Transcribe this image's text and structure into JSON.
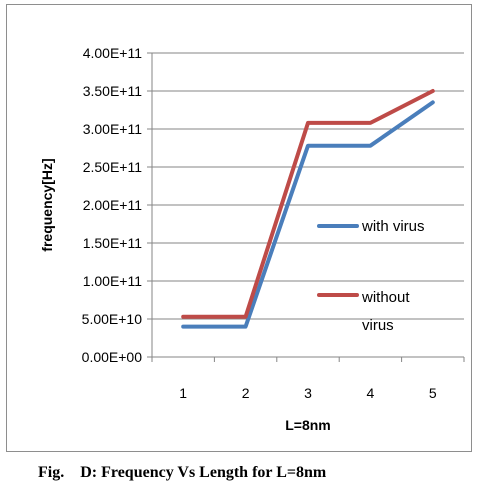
{
  "caption": "Fig.    D: Frequency Vs Length for L=8nm",
  "chart_data": {
    "type": "line",
    "categories": [
      "1",
      "2",
      "3",
      "4",
      "5"
    ],
    "x": [
      1,
      2,
      3,
      4,
      5
    ],
    "series": [
      {
        "name": "with virus",
        "values": [
          40000000000.0,
          40000000000.0,
          278000000000.0,
          278000000000.0,
          335000000000.0
        ],
        "color": "#4a7ebb"
      },
      {
        "name": "without\nvirus",
        "values": [
          53000000000.0,
          53000000000.0,
          308000000000.0,
          308000000000.0,
          350000000000.0
        ],
        "color": "#be4b48"
      }
    ],
    "ylim": [
      0,
      400000000000.0
    ],
    "yticks": [
      "0.00E+00",
      "5.00E+10",
      "1.00E+11",
      "1.50E+11",
      "2.00E+11",
      "2.50E+11",
      "3.00E+11",
      "3.50E+11",
      "4.00E+11"
    ],
    "xlabel": "L=8nm",
    "ylabel": "frequency[Hz]",
    "grid": "horizontal",
    "legend": "right"
  }
}
